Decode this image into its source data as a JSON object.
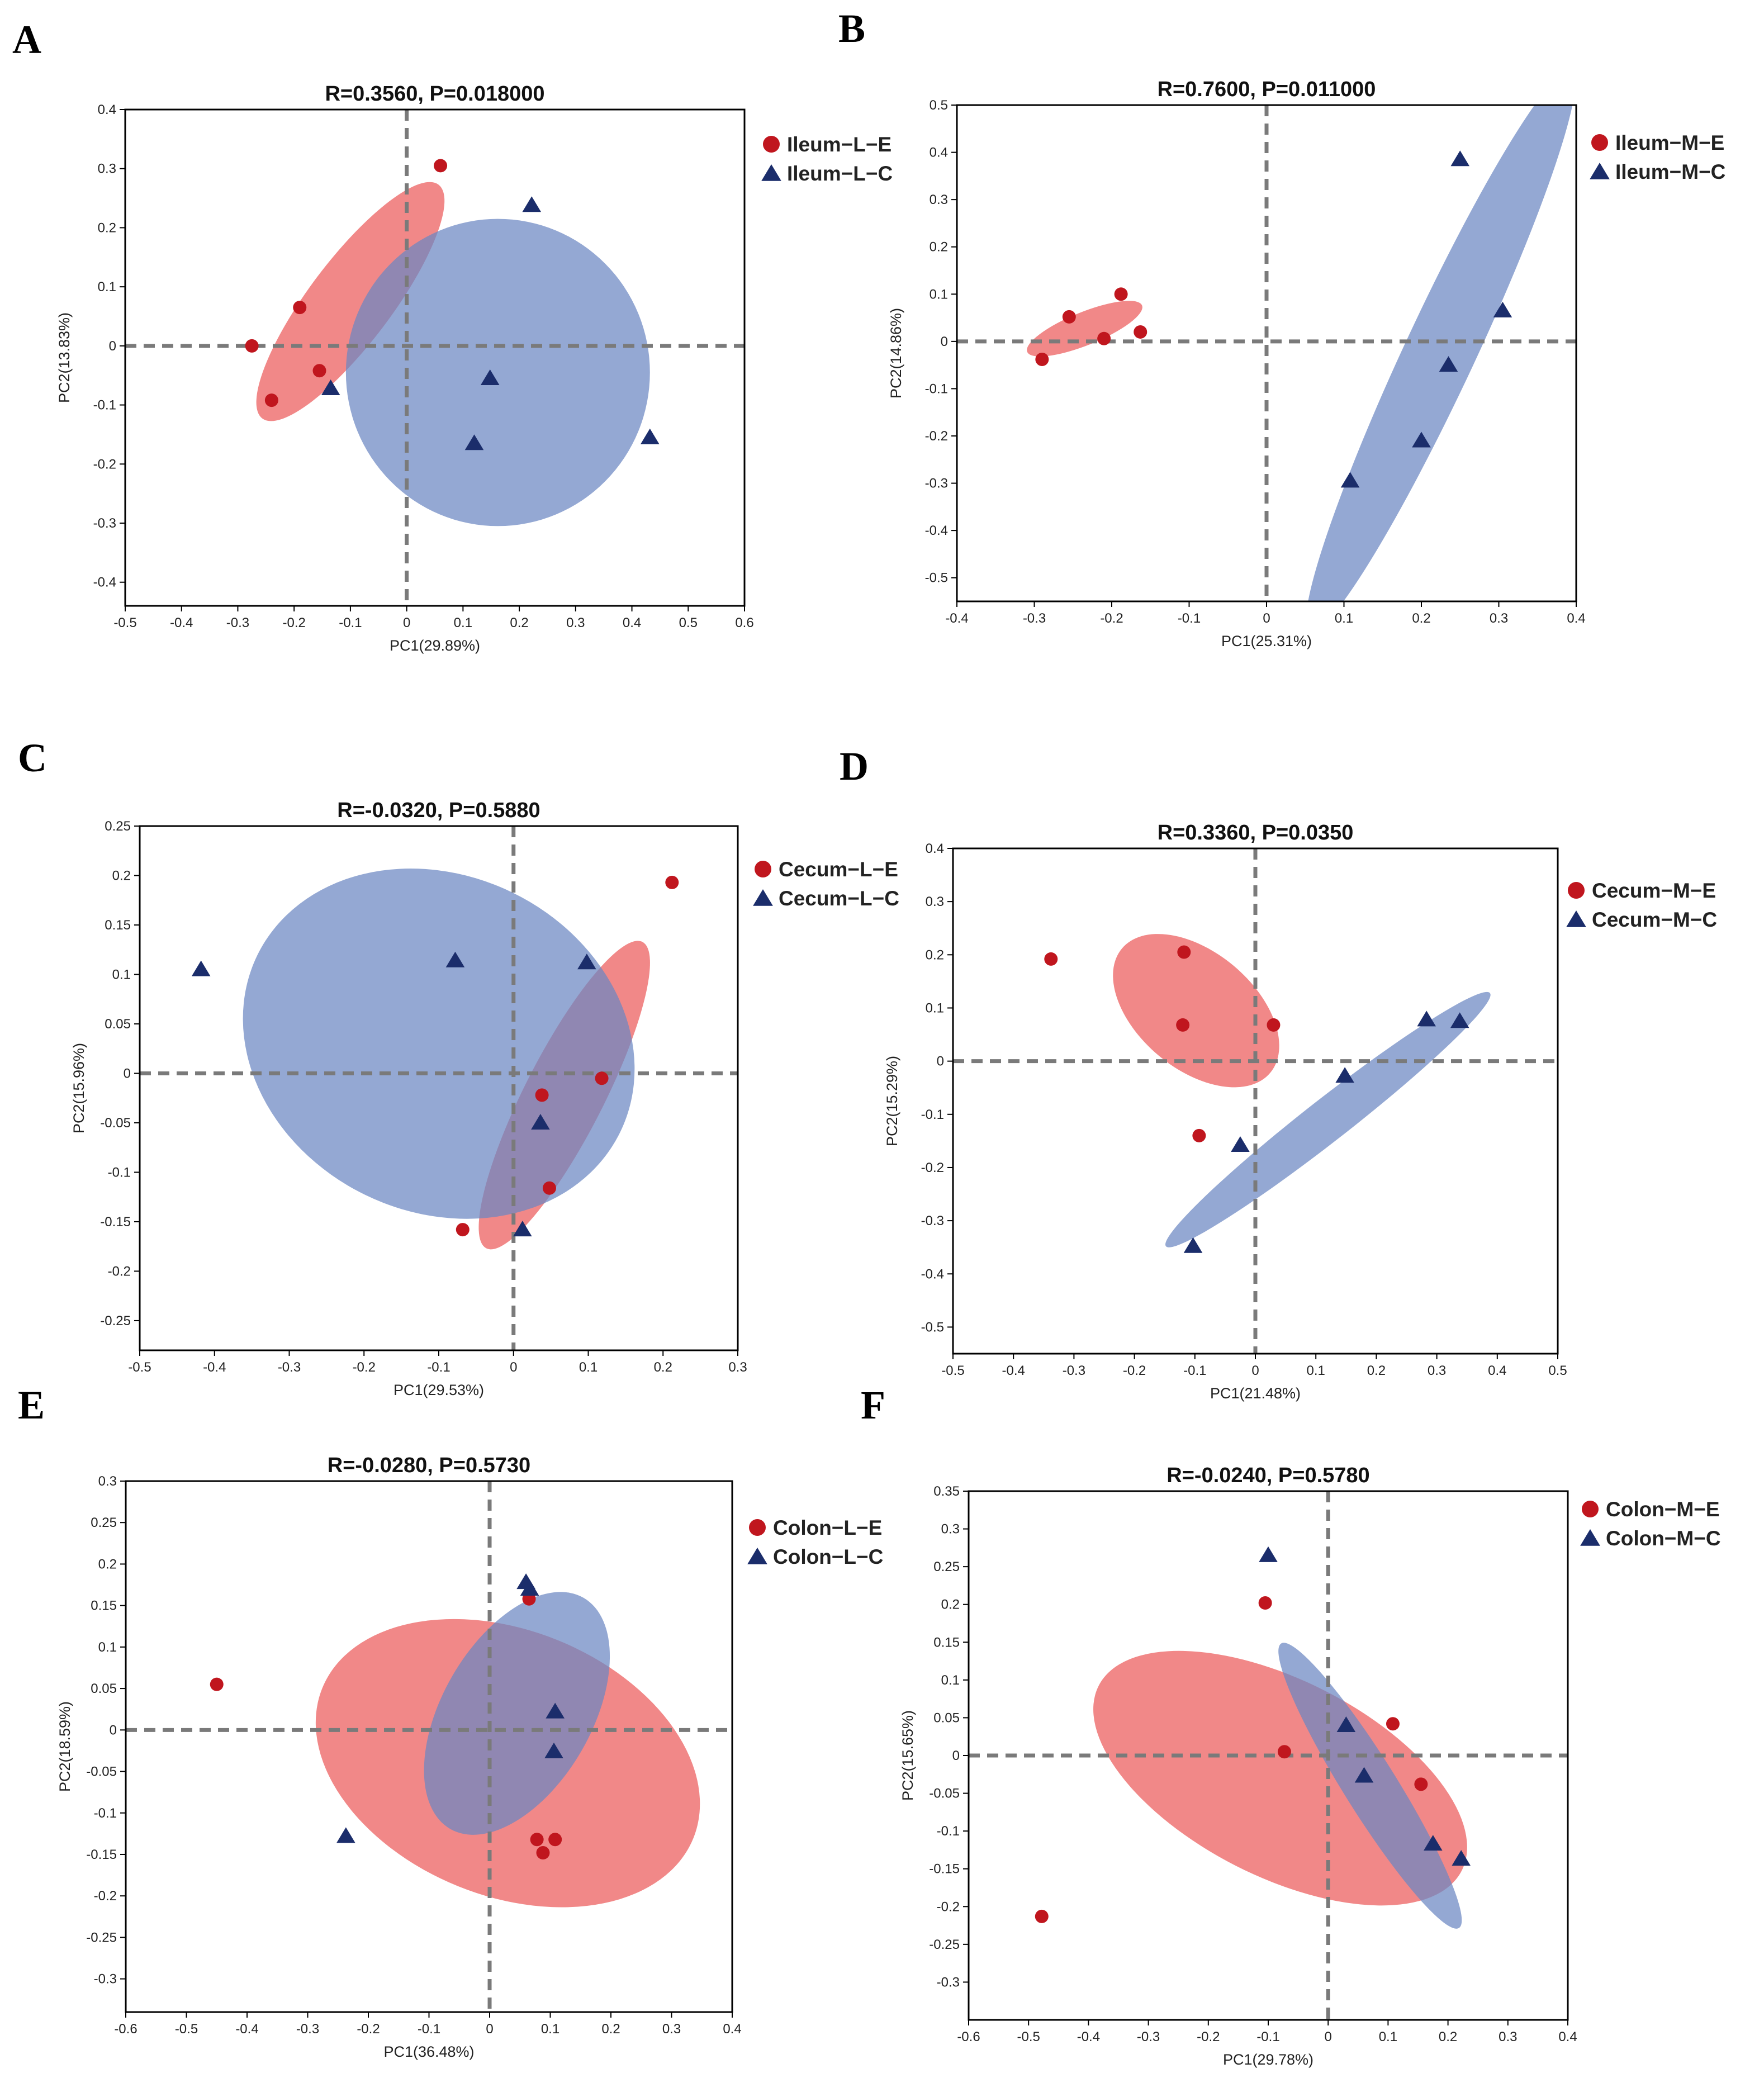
{
  "figure": {
    "colors": {
      "E": "#c0161e",
      "C": "#1b2d6b",
      "ellipse_E": "#ec5a5a",
      "ellipse_C": "#6b86c2",
      "guide": "#7a7a7a"
    }
  },
  "chart_data": [
    {
      "panel": "A",
      "type": "scatter",
      "title": "R=0.3560, P=0.018000",
      "xlabel": "PC1(29.89%)",
      "ylabel": "PC2(13.83%)",
      "xlim": [
        -0.5,
        0.6
      ],
      "ylim": [
        -0.44,
        0.4
      ],
      "xticks": [
        -0.5,
        -0.4,
        -0.3,
        -0.2,
        -0.1,
        0,
        0.1,
        0.2,
        0.3,
        0.4,
        0.5,
        0.6
      ],
      "yticks": [
        -0.4,
        -0.3,
        -0.2,
        -0.1,
        0,
        0.1,
        0.2,
        0.3,
        0.4
      ],
      "tick_decimals": 1,
      "series": [
        {
          "name": "Ileum−L−E",
          "marker": "circle",
          "points": [
            [
              -0.275,
              0.0
            ],
            [
              -0.24,
              -0.092
            ],
            [
              -0.19,
              0.065
            ],
            [
              -0.155,
              -0.042
            ],
            [
              0.06,
              0.305
            ]
          ],
          "ellipse": {
            "cx": -0.1,
            "cy": 0.075,
            "rx": 0.26,
            "ry": 0.07,
            "angle": 53
          }
        },
        {
          "name": "Ileum−L−C",
          "marker": "triangle",
          "points": [
            [
              -0.135,
              -0.072
            ],
            [
              0.12,
              -0.165
            ],
            [
              0.148,
              -0.055
            ],
            [
              0.222,
              0.238
            ],
            [
              0.432,
              -0.155
            ]
          ],
          "ellipse": {
            "cx": 0.162,
            "cy": -0.045,
            "rx": 0.27,
            "ry": 0.26,
            "angle": 0
          }
        }
      ]
    },
    {
      "panel": "B",
      "type": "scatter",
      "title": "R=0.7600, P=0.011000",
      "xlabel": "PC1(25.31%)",
      "ylabel": "PC2(14.86%)",
      "xlim": [
        -0.4,
        0.4
      ],
      "ylim": [
        -0.55,
        0.5
      ],
      "xticks": [
        -0.4,
        -0.3,
        -0.2,
        -0.1,
        0,
        0.1,
        0.2,
        0.3,
        0.4
      ],
      "yticks": [
        -0.5,
        -0.4,
        -0.3,
        -0.2,
        -0.1,
        0,
        0.1,
        0.2,
        0.3,
        0.4,
        0.5
      ],
      "tick_decimals": 1,
      "series": [
        {
          "name": "Ileum−M−E",
          "marker": "circle",
          "points": [
            [
              -0.29,
              -0.038
            ],
            [
              -0.255,
              0.052
            ],
            [
              -0.21,
              0.006
            ],
            [
              -0.188,
              0.1
            ],
            [
              -0.163,
              0.02
            ]
          ],
          "ellipse": {
            "cx": -0.235,
            "cy": 0.027,
            "rx": 0.08,
            "ry": 0.035,
            "angle": 22
          }
        },
        {
          "name": "Ileum−M−C",
          "marker": "triangle",
          "points": [
            [
              0.108,
              -0.295
            ],
            [
              0.2,
              -0.21
            ],
            [
              0.235,
              -0.05
            ],
            [
              0.25,
              0.385
            ],
            [
              0.305,
              0.065
            ]
          ],
          "ellipse": {
            "cx": 0.225,
            "cy": -0.02,
            "rx": 0.4,
            "ry": 0.075,
            "angle": 65
          }
        }
      ]
    },
    {
      "panel": "C",
      "type": "scatter",
      "title": "R=-0.0320, P=0.5880",
      "xlabel": "PC1(29.53%)",
      "ylabel": "PC2(15.96%)",
      "xlim": [
        -0.5,
        0.3
      ],
      "ylim": [
        -0.28,
        0.25
      ],
      "xticks": [
        -0.5,
        -0.4,
        -0.3,
        -0.2,
        -0.1,
        0,
        0.1,
        0.2,
        0.3
      ],
      "yticks": [
        -0.25,
        -0.2,
        -0.15,
        -0.1,
        -0.05,
        0,
        0.05,
        0.1,
        0.15,
        0.2,
        0.25
      ],
      "tick_decimals": 2,
      "series": [
        {
          "name": "Cecum−L−E",
          "marker": "circle",
          "points": [
            [
              -0.068,
              -0.158
            ],
            [
              0.038,
              -0.022
            ],
            [
              0.048,
              -0.116
            ],
            [
              0.118,
              -0.005
            ],
            [
              0.212,
              0.193
            ]
          ],
          "ellipse": {
            "cx": 0.068,
            "cy": -0.022,
            "rx": 0.23,
            "ry": 0.04,
            "angle": 63
          }
        },
        {
          "name": "Cecum−L−C",
          "marker": "triangle",
          "points": [
            [
              -0.418,
              0.105
            ],
            [
              -0.078,
              0.114
            ],
            [
              0.012,
              -0.158
            ],
            [
              0.036,
              -0.05
            ],
            [
              0.098,
              0.112
            ]
          ],
          "ellipse": {
            "cx": -0.1,
            "cy": 0.03,
            "rx": 0.27,
            "ry": 0.17,
            "angle": -26
          }
        }
      ]
    },
    {
      "panel": "D",
      "type": "scatter",
      "title": "R=0.3360, P=0.0350",
      "xlabel": "PC1(21.48%)",
      "ylabel": "PC2(15.29%)",
      "xlim": [
        -0.5,
        0.5
      ],
      "ylim": [
        -0.55,
        0.4
      ],
      "xticks": [
        -0.5,
        -0.4,
        -0.3,
        -0.2,
        -0.1,
        0,
        0.1,
        0.2,
        0.3,
        0.4,
        0.5
      ],
      "yticks": [
        -0.5,
        -0.4,
        -0.3,
        -0.2,
        -0.1,
        0,
        0.1,
        0.2,
        0.3,
        0.4
      ],
      "tick_decimals": 1,
      "series": [
        {
          "name": "Cecum−M−E",
          "marker": "circle",
          "points": [
            [
              -0.338,
              0.192
            ],
            [
              -0.118,
              0.205
            ],
            [
              -0.12,
              0.068
            ],
            [
              -0.093,
              -0.14
            ],
            [
              0.03,
              0.068
            ]
          ],
          "ellipse": {
            "cx": -0.098,
            "cy": 0.095,
            "rx": 0.16,
            "ry": 0.11,
            "angle": -40
          }
        },
        {
          "name": "Cecum−M−C",
          "marker": "triangle",
          "points": [
            [
              -0.103,
              -0.348
            ],
            [
              -0.025,
              -0.158
            ],
            [
              0.148,
              -0.028
            ],
            [
              0.283,
              0.078
            ],
            [
              0.338,
              0.075
            ]
          ],
          "ellipse": {
            "cx": 0.12,
            "cy": -0.11,
            "rx": 0.34,
            "ry": 0.04,
            "angle": 38
          }
        }
      ]
    },
    {
      "panel": "E",
      "type": "scatter",
      "title": "R=-0.0280, P=0.5730",
      "xlabel": "PC1(36.48%)",
      "ylabel": "PC2(18.59%)",
      "xlim": [
        -0.6,
        0.4
      ],
      "ylim": [
        -0.34,
        0.3
      ],
      "xticks": [
        -0.6,
        -0.5,
        -0.4,
        -0.3,
        -0.2,
        -0.1,
        0,
        0.1,
        0.2,
        0.3,
        0.4
      ],
      "yticks": [
        -0.3,
        -0.25,
        -0.2,
        -0.15,
        -0.1,
        -0.05,
        0,
        0.05,
        0.1,
        0.15,
        0.2,
        0.25,
        0.3
      ],
      "tick_decimals": 2,
      "series": [
        {
          "name": "Colon−L−E",
          "marker": "circle",
          "points": [
            [
              -0.45,
              0.055
            ],
            [
              0.065,
              0.158
            ],
            [
              0.078,
              -0.132
            ],
            [
              0.088,
              -0.148
            ],
            [
              0.108,
              -0.132
            ]
          ],
          "ellipse": {
            "cx": 0.03,
            "cy": -0.04,
            "rx": 0.33,
            "ry": 0.16,
            "angle": -22
          }
        },
        {
          "name": "Colon−L−C",
          "marker": "triangle",
          "points": [
            [
              -0.237,
              -0.128
            ],
            [
              0.06,
              0.178
            ],
            [
              0.066,
              0.17
            ],
            [
              0.108,
              0.022
            ],
            [
              0.106,
              -0.026
            ]
          ],
          "ellipse": {
            "cx": 0.045,
            "cy": 0.02,
            "rx": 0.22,
            "ry": 0.09,
            "angle": 60
          }
        }
      ]
    },
    {
      "panel": "F",
      "type": "scatter",
      "title": "R=-0.0240, P=0.5780",
      "xlabel": "PC1(29.78%)",
      "ylabel": "PC2(15.65%)",
      "xlim": [
        -0.6,
        0.4
      ],
      "ylim": [
        -0.35,
        0.35
      ],
      "xticks": [
        -0.6,
        -0.5,
        -0.4,
        -0.3,
        -0.2,
        -0.1,
        0,
        0.1,
        0.2,
        0.3,
        0.4
      ],
      "yticks": [
        -0.3,
        -0.25,
        -0.2,
        -0.15,
        -0.1,
        -0.05,
        0,
        0.05,
        0.1,
        0.15,
        0.2,
        0.25,
        0.3,
        0.35
      ],
      "tick_decimals": 2,
      "series": [
        {
          "name": "Colon−M−E",
          "marker": "circle",
          "points": [
            [
              -0.478,
              -0.213
            ],
            [
              -0.105,
              0.202
            ],
            [
              -0.073,
              0.005
            ],
            [
              0.108,
              0.042
            ],
            [
              0.155,
              -0.038
            ]
          ],
          "ellipse": {
            "cx": -0.08,
            "cy": -0.03,
            "rx": 0.34,
            "ry": 0.13,
            "angle": -27
          }
        },
        {
          "name": "Colon−M−C",
          "marker": "triangle",
          "points": [
            [
              -0.1,
              0.265
            ],
            [
              0.03,
              0.04
            ],
            [
              0.06,
              -0.027
            ],
            [
              0.175,
              -0.117
            ],
            [
              0.222,
              -0.137
            ]
          ],
          "ellipse": {
            "cx": 0.07,
            "cy": -0.04,
            "rx": 0.28,
            "ry": 0.035,
            "angle": -58
          }
        }
      ]
    }
  ]
}
